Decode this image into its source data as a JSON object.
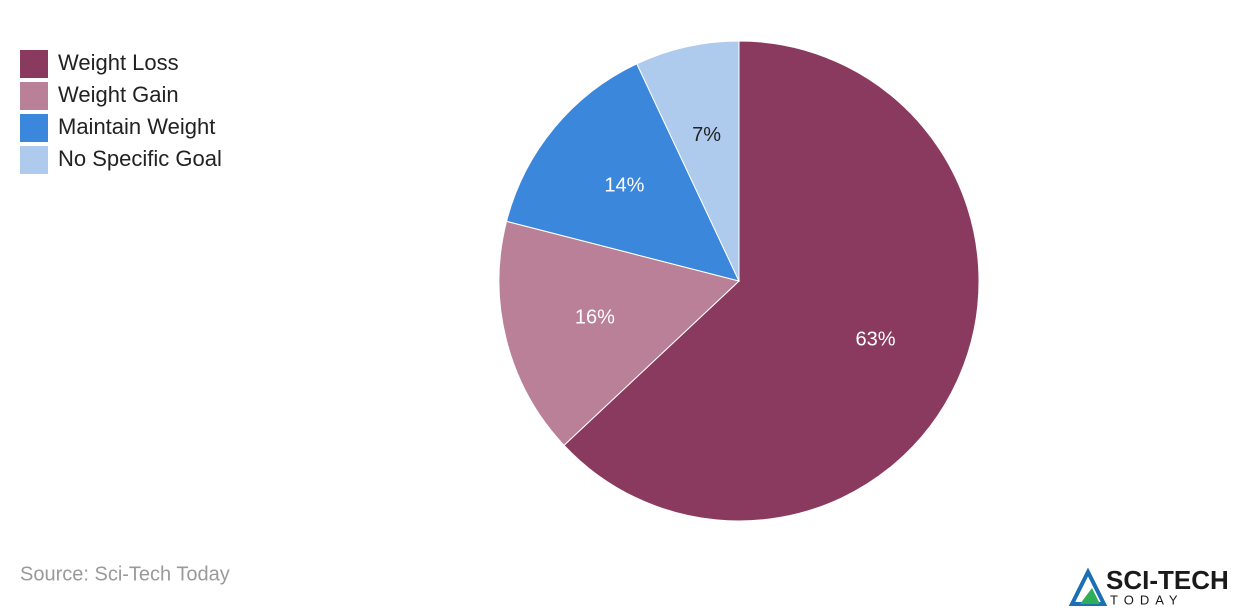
{
  "chart_data": {
    "type": "pie",
    "categories": [
      "Weight Loss",
      "Weight Gain",
      "Maintain Weight",
      "No Specific Goal"
    ],
    "values": [
      63,
      16,
      14,
      7
    ],
    "value_labels": [
      "63%",
      "16%",
      "14%",
      "7%"
    ],
    "colors": [
      "#8b3a5f",
      "#b98098",
      "#3b87db",
      "#aecbee"
    ],
    "legend": "top-left",
    "source": "Source: Sci-Tech Today",
    "logo": {
      "title": "SCI-TECH",
      "subtitle": "TODAY"
    }
  }
}
